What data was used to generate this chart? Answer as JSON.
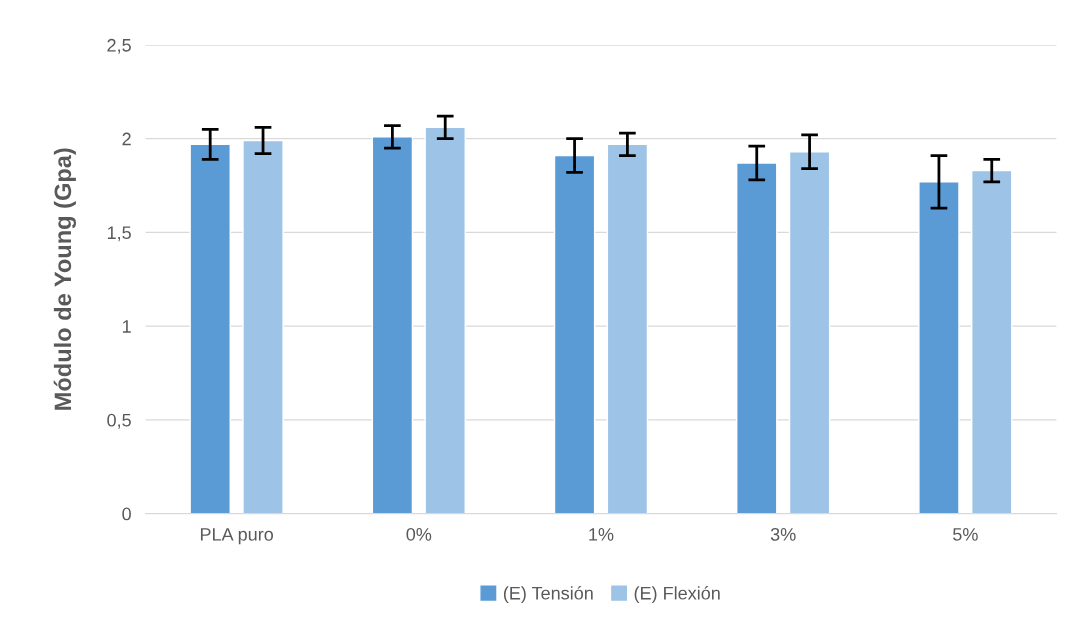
{
  "chart_data": {
    "type": "bar",
    "ylabel": "Módulo de Young (Gpa)",
    "categories": [
      "PLA puro",
      "0%",
      "1%",
      "3%",
      "5%"
    ],
    "series": [
      {
        "name": "(E) Tensión",
        "color": "#5b9bd5",
        "values": [
          1.97,
          2.01,
          1.91,
          1.87,
          1.77
        ],
        "errors": [
          0.08,
          0.06,
          0.09,
          0.09,
          0.14
        ]
      },
      {
        "name": "(E) Flexión",
        "color": "#9dc3e6",
        "values": [
          1.99,
          2.06,
          1.97,
          1.93,
          1.83
        ],
        "errors": [
          0.07,
          0.06,
          0.06,
          0.09,
          0.06
        ]
      }
    ],
    "ylim": [
      0,
      2.5
    ],
    "yticks": [
      {
        "value": 0,
        "label": "0"
      },
      {
        "value": 0.5,
        "label": "0,5"
      },
      {
        "value": 1,
        "label": "1"
      },
      {
        "value": 1.5,
        "label": "1,5"
      },
      {
        "value": 2,
        "label": "2"
      },
      {
        "value": 2.5,
        "label": "2,5"
      }
    ],
    "grid": "y",
    "legend": "bottom"
  }
}
